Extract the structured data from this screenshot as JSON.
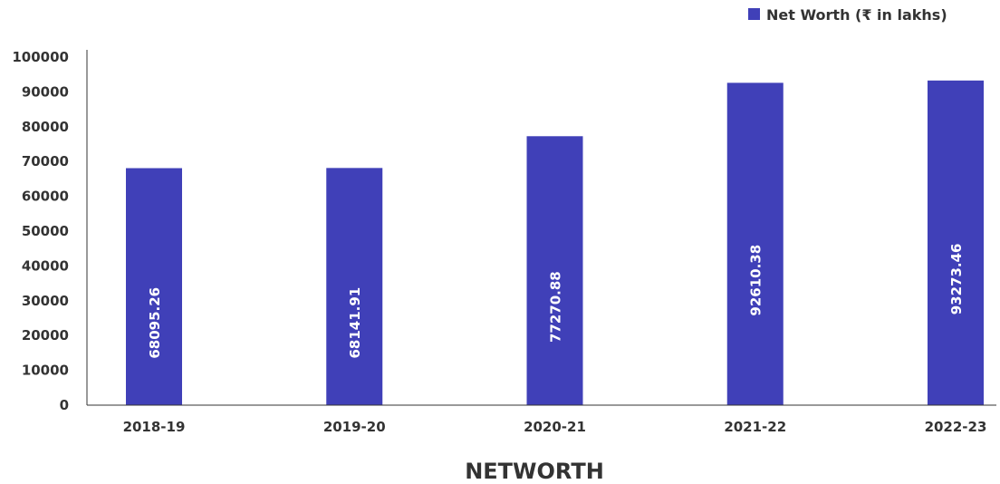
{
  "chart_data": {
    "type": "bar",
    "categories": [
      "2018-19",
      "2019-20",
      "2020-21",
      "2021-22",
      "2022-23"
    ],
    "series": [
      {
        "name": "Net Worth (₹ in lakhs)",
        "values": [
          68095.26,
          68141.91,
          77270.88,
          92610.38,
          93273.46
        ],
        "labels": [
          "68095.26",
          "68141.91",
          "77270.88",
          "92610.38",
          "93273.46"
        ],
        "color": "#4040b8"
      }
    ],
    "xlabel": "NETWORTH",
    "ylabel": "",
    "ylim": [
      0,
      100000
    ],
    "yticks": [
      "0",
      "10000",
      "20000",
      "30000",
      "40000",
      "50000",
      "60000",
      "70000",
      "80000",
      "90000",
      "100000"
    ],
    "grid": false,
    "legend": "top-right",
    "axis_color": "#333333"
  }
}
